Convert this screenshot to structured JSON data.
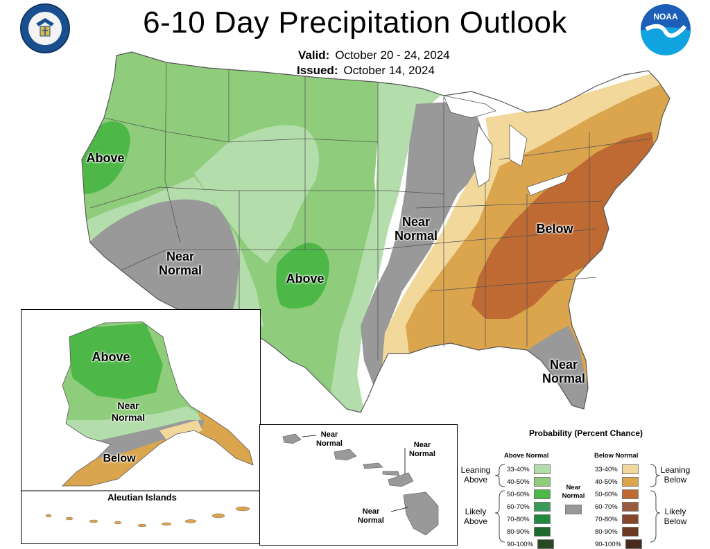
{
  "header": {
    "title": "6-10 Day Precipitation Outlook",
    "valid_label": "Valid:",
    "valid_value": "October 20 - 24, 2024",
    "issued_label": "Issued:",
    "issued_value": "October 14, 2024"
  },
  "logos": {
    "left": "doc-seal",
    "left_text": "DEPARTMENT OF COMMERCE · UNITED STATES OF AMERICA",
    "right": "noaa-logo",
    "right_text": "NOAA"
  },
  "map_labels": {
    "above_northwest": "Above",
    "near_normal_southwest": "Near Normal",
    "above_southern_plains": "Above",
    "near_normal_midwest": "Near Normal",
    "below_east": "Below",
    "near_normal_florida": "Near Normal",
    "alaska_above": "Above",
    "alaska_near_normal": "Near Normal",
    "alaska_below": "Below",
    "aleutian_title": "Aleutian Islands",
    "hawaii_near_normal_1": "Near Normal",
    "hawaii_near_normal_2": "Near Normal",
    "hawaii_near_normal_3": "Near Normal"
  },
  "legend": {
    "title": "Probability (Percent Chance)",
    "above_header": "Above Normal",
    "below_header": "Below Normal",
    "near_normal": "Near Normal",
    "leaning_above": "Leaning Above",
    "likely_above": "Likely Above",
    "leaning_below": "Leaning Below",
    "likely_below": "Likely Below",
    "near_normal_color": "#999999",
    "above": [
      {
        "range": "33-40%",
        "color": "#b3deac"
      },
      {
        "range": "40-50%",
        "color": "#8fcd7c"
      },
      {
        "range": "50-60%",
        "color": "#4db748"
      },
      {
        "range": "60-70%",
        "color": "#3a9a5a"
      },
      {
        "range": "70-80%",
        "color": "#1f8a3c"
      },
      {
        "range": "80-90%",
        "color": "#1d6b2c"
      },
      {
        "range": "90-100%",
        "color": "#254a22"
      }
    ],
    "below": [
      {
        "range": "33-40%",
        "color": "#f3d89b"
      },
      {
        "range": "40-50%",
        "color": "#dba54e"
      },
      {
        "range": "50-60%",
        "color": "#bf6a33"
      },
      {
        "range": "60-70%",
        "color": "#9c5a3c"
      },
      {
        "range": "70-80%",
        "color": "#85452a"
      },
      {
        "range": "80-90%",
        "color": "#6b3a22"
      },
      {
        "range": "90-100%",
        "color": "#4a2a1a"
      }
    ]
  },
  "colors": {
    "above_33_40": "#b3deac",
    "above_40_50": "#8fcd7c",
    "above_50_60": "#4db748",
    "near_normal": "#999999",
    "below_33_40": "#f3d89b",
    "below_40_50": "#dba54e",
    "below_50_60": "#bf6a33"
  }
}
